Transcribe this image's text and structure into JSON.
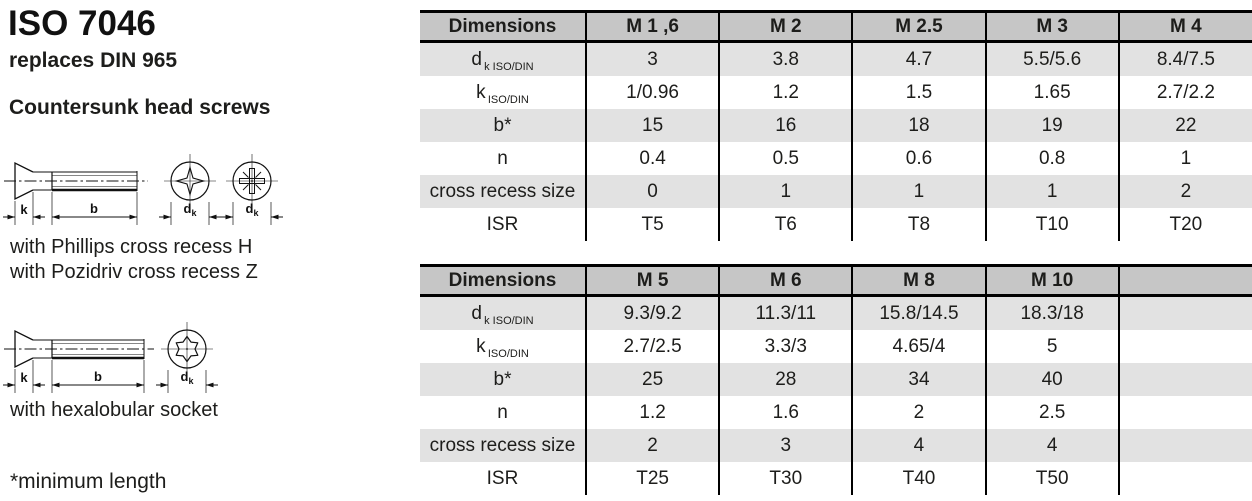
{
  "page": {
    "title": "ISO 7046",
    "subtitle": "replaces DIN 965",
    "heading": "Countersunk head screws",
    "caption_phillips": "with Phillips cross recess H",
    "caption_pozidriv": "with Pozidriv cross recess Z",
    "caption_hexalobular": "with hexalobular socket",
    "footnote": "*minimum length"
  },
  "drawings": {
    "k_label": "k",
    "b_label": "b",
    "dk_main": "d",
    "dk_sub": "k"
  },
  "colors": {
    "header_bg": "#c6c6c6",
    "row_alt_bg": "#e2e2e2",
    "border": "#000000",
    "text": "#1d1d1b"
  },
  "tables": [
    {
      "header": [
        "Dimensions",
        "M 1 ,6",
        "M 2",
        "M 2.5",
        "M 3",
        "M 4"
      ],
      "rows": [
        {
          "label": {
            "main": "d",
            "sub": "k ISO/DIN"
          },
          "values": [
            "3",
            "3.8",
            "4.7",
            "5.5/5.6",
            "8.4/7.5"
          ]
        },
        {
          "label": {
            "main": "k",
            "sub": "ISO/DIN"
          },
          "values": [
            "1/0.96",
            "1.2",
            "1.5",
            "1.65",
            "2.7/2.2"
          ]
        },
        {
          "label": {
            "main": "b*",
            "sub": ""
          },
          "values": [
            "15",
            "16",
            "18",
            "19",
            "22"
          ]
        },
        {
          "label": {
            "main": "n",
            "sub": ""
          },
          "values": [
            "0.4",
            "0.5",
            "0.6",
            "0.8",
            "1"
          ]
        },
        {
          "label": {
            "main": "cross recess size",
            "sub": ""
          },
          "values": [
            "0",
            "1",
            "1",
            "1",
            "2"
          ]
        },
        {
          "label": {
            "main": "ISR",
            "sub": ""
          },
          "values": [
            "T5",
            "T6",
            "T8",
            "T10",
            "T20"
          ]
        }
      ]
    },
    {
      "header": [
        "Dimensions",
        "M 5",
        "M 6",
        "M 8",
        "M 10",
        ""
      ],
      "rows": [
        {
          "label": {
            "main": "d",
            "sub": "k ISO/DIN"
          },
          "values": [
            "9.3/9.2",
            "11.3/11",
            "15.8/14.5",
            "18.3/18",
            ""
          ]
        },
        {
          "label": {
            "main": "k",
            "sub": "ISO/DIN"
          },
          "values": [
            "2.7/2.5",
            "3.3/3",
            "4.65/4",
            "5",
            ""
          ]
        },
        {
          "label": {
            "main": "b*",
            "sub": ""
          },
          "values": [
            "25",
            "28",
            "34",
            "40",
            ""
          ]
        },
        {
          "label": {
            "main": "n",
            "sub": ""
          },
          "values": [
            "1.2",
            "1.6",
            "2",
            "2.5",
            ""
          ]
        },
        {
          "label": {
            "main": "cross recess size",
            "sub": ""
          },
          "values": [
            "2",
            "3",
            "4",
            "4",
            ""
          ]
        },
        {
          "label": {
            "main": "ISR",
            "sub": ""
          },
          "values": [
            "T25",
            "T30",
            "T40",
            "T50",
            ""
          ]
        }
      ]
    }
  ]
}
